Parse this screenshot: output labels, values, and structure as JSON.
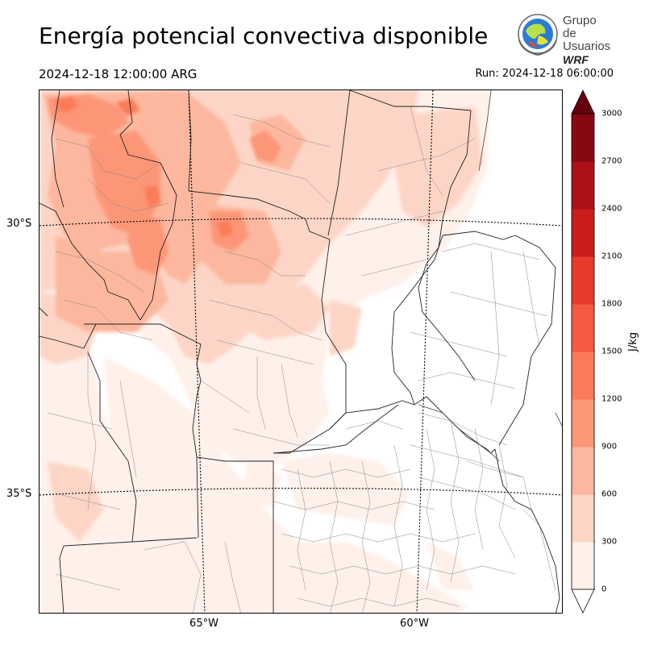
{
  "header": {
    "title": "Energía potencial convectiva disponible",
    "valid_time": "2024-12-18 12:00:00 ARG",
    "run_time": "Run: 2024-12-18 06:00:00"
  },
  "logo": {
    "line1": "Grupo de",
    "line2": "Usuarios",
    "line3": "WRF"
  },
  "map": {
    "lat_labels": [
      "30°S",
      "35°S"
    ],
    "lon_labels": [
      "65°W",
      "60°W"
    ]
  },
  "colorbar": {
    "unit": "J/kg",
    "ticks": [
      "0",
      "300",
      "600",
      "900",
      "1200",
      "1500",
      "1800",
      "2100",
      "2400",
      "2700",
      "3000"
    ],
    "colors": [
      "#fff0ea",
      "#fdd5c6",
      "#fcb79e",
      "#fc9677",
      "#fb7b59",
      "#f45b40",
      "#e63a2b",
      "#cb1d1e",
      "#ac1117",
      "#860811"
    ],
    "over_color": "#67000d"
  }
}
